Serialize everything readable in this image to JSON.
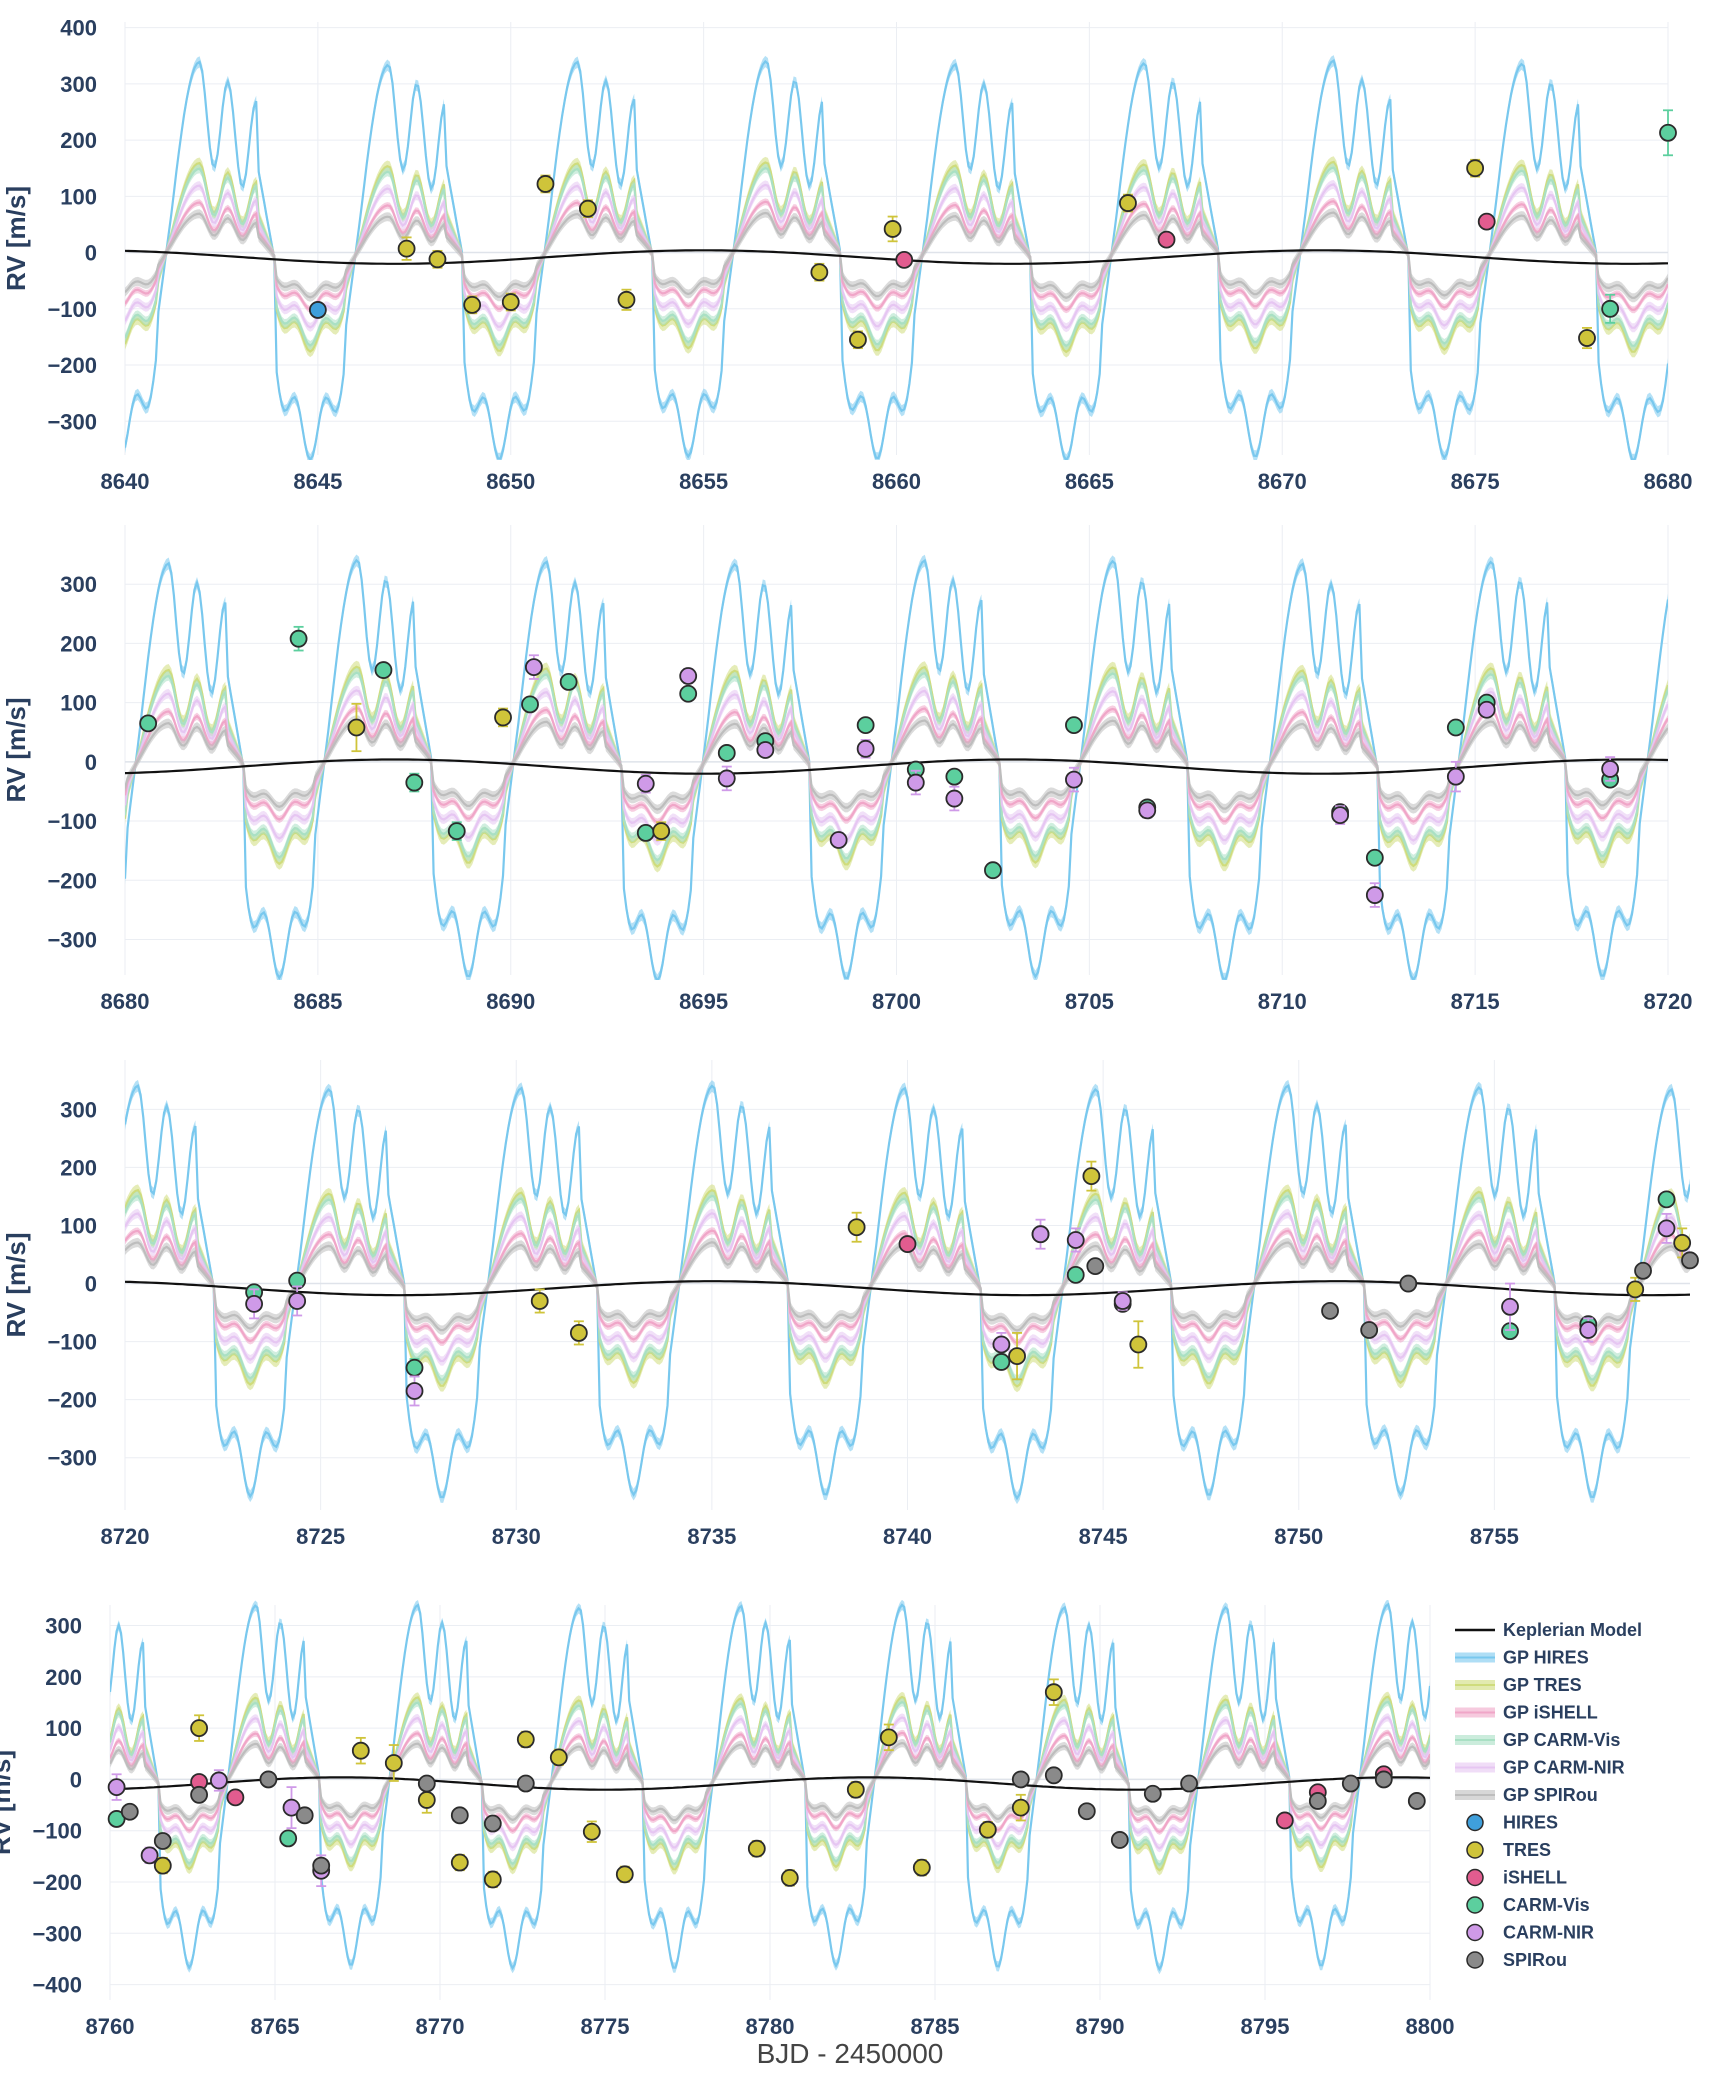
{
  "figure": {
    "x_axis_title": "BJD - 2450000"
  },
  "legend": {
    "position": "right of bottom panel",
    "entries": [
      {
        "name": "Keplerian Model",
        "kind": "line",
        "color": "#111111"
      },
      {
        "name": "GP HIRES",
        "kind": "band",
        "color": "#79c8ee"
      },
      {
        "name": "GP TRES",
        "kind": "band",
        "color": "#cfdc7c"
      },
      {
        "name": "GP iSHELL",
        "kind": "band",
        "color": "#f0a6c8"
      },
      {
        "name": "GP CARM-Vis",
        "kind": "band",
        "color": "#a9e0c4"
      },
      {
        "name": "GP CARM-NIR",
        "kind": "band",
        "color": "#e6c6f2"
      },
      {
        "name": "GP SPIRou",
        "kind": "band",
        "color": "#bdbdbd"
      },
      {
        "name": "HIRES",
        "kind": "marker",
        "color": "#3f9fdb"
      },
      {
        "name": "TRES",
        "kind": "marker",
        "color": "#cfc43a"
      },
      {
        "name": "iSHELL",
        "kind": "marker",
        "color": "#e25c8f"
      },
      {
        "name": "CARM-Vis",
        "kind": "marker",
        "color": "#5ccf9e"
      },
      {
        "name": "CARM-NIR",
        "kind": "marker",
        "color": "#cf9ae8"
      },
      {
        "name": "SPIRou",
        "kind": "marker",
        "color": "#8a8a8a"
      }
    ]
  },
  "chart_data": [
    {
      "type": "line",
      "ylabel": "RV [m/s]",
      "xlim": [
        8640,
        8680
      ],
      "ylim": [
        -360,
        410
      ],
      "xticks": [
        "8640",
        "8645",
        "8650",
        "8655",
        "8660",
        "8665",
        "8670",
        "8675",
        "8680"
      ],
      "yticks": [
        "400",
        "300",
        "200",
        "100",
        "0",
        "−100",
        "−200",
        "−300"
      ],
      "points": [
        {
          "inst": "HIRES",
          "x": 8645.0,
          "y": -102,
          "err": 6
        },
        {
          "inst": "TRES",
          "x": 8647.3,
          "y": 7,
          "err": 20
        },
        {
          "inst": "TRES",
          "x": 8648.1,
          "y": -12,
          "err": 15
        },
        {
          "inst": "TRES",
          "x": 8649.0,
          "y": -93,
          "err": 15
        },
        {
          "inst": "TRES",
          "x": 8650.0,
          "y": -88,
          "err": 15
        },
        {
          "inst": "TRES",
          "x": 8650.9,
          "y": 122,
          "err": 15
        },
        {
          "inst": "TRES",
          "x": 8652.0,
          "y": 78,
          "err": 15
        },
        {
          "inst": "TRES",
          "x": 8653.0,
          "y": -84,
          "err": 18
        },
        {
          "inst": "TRES",
          "x": 8658.0,
          "y": -35,
          "err": 15
        },
        {
          "inst": "TRES",
          "x": 8659.0,
          "y": -155,
          "err": 15
        },
        {
          "inst": "TRES",
          "x": 8659.9,
          "y": 42,
          "err": 22
        },
        {
          "inst": "iSHELL",
          "x": 8660.2,
          "y": -13,
          "err": 8
        },
        {
          "inst": "TRES",
          "x": 8666.0,
          "y": 88,
          "err": 15
        },
        {
          "inst": "iSHELL",
          "x": 8667.0,
          "y": 23,
          "err": 8
        },
        {
          "inst": "TRES",
          "x": 8675.0,
          "y": 150,
          "err": 15
        },
        {
          "inst": "iSHELL",
          "x": 8675.3,
          "y": 55,
          "err": 8
        },
        {
          "inst": "TRES",
          "x": 8677.9,
          "y": -152,
          "err": 18
        },
        {
          "inst": "CARM-Vis",
          "x": 8678.5,
          "y": -100,
          "err": 25
        },
        {
          "inst": "CARM-Vis",
          "x": 8680.0,
          "y": 213,
          "err": 40
        }
      ]
    },
    {
      "type": "line",
      "ylabel": "RV [m/s]",
      "xlim": [
        8680,
        8720
      ],
      "ylim": [
        -360,
        400
      ],
      "xticks": [
        "8680",
        "8685",
        "8690",
        "8695",
        "8700",
        "8705",
        "8710",
        "8715",
        "8720"
      ],
      "yticks": [
        "300",
        "200",
        "100",
        "0",
        "−100",
        "−200",
        "−300"
      ],
      "points": [
        {
          "inst": "CARM-Vis",
          "x": 8680.6,
          "y": 65,
          "err": 10
        },
        {
          "inst": "CARM-Vis",
          "x": 8684.5,
          "y": 208,
          "err": 20
        },
        {
          "inst": "TRES",
          "x": 8686.0,
          "y": 58,
          "err": 40
        },
        {
          "inst": "CARM-Vis",
          "x": 8686.7,
          "y": 155,
          "err": 10
        },
        {
          "inst": "CARM-Vis",
          "x": 8687.5,
          "y": -35,
          "err": 15
        },
        {
          "inst": "CARM-Vis",
          "x": 8688.6,
          "y": -117,
          "err": 15
        },
        {
          "inst": "TRES",
          "x": 8689.8,
          "y": 75,
          "err": 15
        },
        {
          "inst": "CARM-Vis",
          "x": 8690.5,
          "y": 97,
          "err": 10
        },
        {
          "inst": "CARM-NIR",
          "x": 8690.6,
          "y": 160,
          "err": 20
        },
        {
          "inst": "CARM-Vis",
          "x": 8691.5,
          "y": 135,
          "err": 10
        },
        {
          "inst": "CARM-NIR",
          "x": 8693.5,
          "y": -37,
          "err": 15
        },
        {
          "inst": "CARM-Vis",
          "x": 8693.5,
          "y": -120,
          "err": 12
        },
        {
          "inst": "TRES",
          "x": 8693.9,
          "y": -117,
          "err": 15
        },
        {
          "inst": "CARM-Vis",
          "x": 8694.6,
          "y": 115,
          "err": 10
        },
        {
          "inst": "CARM-NIR",
          "x": 8694.6,
          "y": 145,
          "err": 12
        },
        {
          "inst": "CARM-Vis",
          "x": 8695.6,
          "y": 15,
          "err": 10
        },
        {
          "inst": "CARM-NIR",
          "x": 8695.6,
          "y": -28,
          "err": 20
        },
        {
          "inst": "CARM-Vis",
          "x": 8696.6,
          "y": 35,
          "err": 10
        },
        {
          "inst": "CARM-NIR",
          "x": 8696.6,
          "y": 20,
          "err": 10
        },
        {
          "inst": "CARM-NIR",
          "x": 8698.5,
          "y": -132,
          "err": 12
        },
        {
          "inst": "CARM-Vis",
          "x": 8699.2,
          "y": 62,
          "err": 10
        },
        {
          "inst": "CARM-NIR",
          "x": 8699.2,
          "y": 22,
          "err": 15
        },
        {
          "inst": "CARM-Vis",
          "x": 8700.5,
          "y": -13,
          "err": 10
        },
        {
          "inst": "CARM-NIR",
          "x": 8700.5,
          "y": -35,
          "err": 20
        },
        {
          "inst": "CARM-Vis",
          "x": 8701.5,
          "y": -25,
          "err": 10
        },
        {
          "inst": "CARM-NIR",
          "x": 8701.5,
          "y": -62,
          "err": 20
        },
        {
          "inst": "CARM-Vis",
          "x": 8702.5,
          "y": -183,
          "err": 10
        },
        {
          "inst": "CARM-Vis",
          "x": 8704.6,
          "y": 62,
          "err": 10
        },
        {
          "inst": "CARM-NIR",
          "x": 8704.6,
          "y": -30,
          "err": 20
        },
        {
          "inst": "CARM-Vis",
          "x": 8706.5,
          "y": -77,
          "err": 10
        },
        {
          "inst": "CARM-NIR",
          "x": 8706.5,
          "y": -82,
          "err": 12
        },
        {
          "inst": "CARM-Vis",
          "x": 8711.5,
          "y": -85,
          "err": 10
        },
        {
          "inst": "CARM-NIR",
          "x": 8711.5,
          "y": -90,
          "err": 15
        },
        {
          "inst": "CARM-Vis",
          "x": 8712.4,
          "y": -162,
          "err": 10
        },
        {
          "inst": "CARM-NIR",
          "x": 8712.4,
          "y": -225,
          "err": 20
        },
        {
          "inst": "CARM-Vis",
          "x": 8714.5,
          "y": 58,
          "err": 10
        },
        {
          "inst": "CARM-NIR",
          "x": 8714.5,
          "y": -25,
          "err": 25
        },
        {
          "inst": "CARM-Vis",
          "x": 8715.3,
          "y": 100,
          "err": 10
        },
        {
          "inst": "CARM-NIR",
          "x": 8715.3,
          "y": 88,
          "err": 10
        },
        {
          "inst": "CARM-Vis",
          "x": 8718.5,
          "y": -30,
          "err": 10
        },
        {
          "inst": "CARM-NIR",
          "x": 8718.5,
          "y": -12,
          "err": 20
        }
      ]
    },
    {
      "type": "line",
      "ylabel": "RV [m/s]",
      "xlim": [
        8720,
        8760
      ],
      "ylim": [
        -390,
        385
      ],
      "xticks": [
        "8720",
        "8725",
        "8730",
        "8735",
        "8740",
        "8745",
        "8750",
        "8755"
      ],
      "yticks": [
        "300",
        "200",
        "100",
        "0",
        "−100",
        "−200",
        "−300"
      ],
      "points": [
        {
          "inst": "CARM-Vis",
          "x": 8723.3,
          "y": -15,
          "err": 10
        },
        {
          "inst": "CARM-NIR",
          "x": 8723.3,
          "y": -35,
          "err": 25
        },
        {
          "inst": "CARM-Vis",
          "x": 8724.4,
          "y": 5,
          "err": 10
        },
        {
          "inst": "CARM-NIR",
          "x": 8724.4,
          "y": -30,
          "err": 25
        },
        {
          "inst": "CARM-Vis",
          "x": 8727.4,
          "y": -145,
          "err": 15
        },
        {
          "inst": "CARM-NIR",
          "x": 8727.4,
          "y": -185,
          "err": 25
        },
        {
          "inst": "TRES",
          "x": 8730.6,
          "y": -30,
          "err": 20
        },
        {
          "inst": "TRES",
          "x": 8731.6,
          "y": -85,
          "err": 20
        },
        {
          "inst": "TRES",
          "x": 8738.7,
          "y": 97,
          "err": 25
        },
        {
          "inst": "iSHELL",
          "x": 8740.0,
          "y": 68,
          "err": 8
        },
        {
          "inst": "CARM-NIR",
          "x": 8742.4,
          "y": -105,
          "err": 20
        },
        {
          "inst": "CARM-Vis",
          "x": 8742.4,
          "y": -135,
          "err": 10
        },
        {
          "inst": "TRES",
          "x": 8742.8,
          "y": -125,
          "err": 40
        },
        {
          "inst": "CARM-Vis",
          "x": 8743.4,
          "y": 85,
          "err": 10
        },
        {
          "inst": "CARM-NIR",
          "x": 8743.4,
          "y": 85,
          "err": 25
        },
        {
          "inst": "TRES",
          "x": 8744.7,
          "y": 185,
          "err": 25
        },
        {
          "inst": "CARM-Vis",
          "x": 8744.3,
          "y": 15,
          "err": 10
        },
        {
          "inst": "CARM-NIR",
          "x": 8744.3,
          "y": 75,
          "err": 20
        },
        {
          "inst": "SPIRou",
          "x": 8744.8,
          "y": 30,
          "err": 8
        },
        {
          "inst": "SPIRou",
          "x": 8745.5,
          "y": -35,
          "err": 8
        },
        {
          "inst": "CARM-NIR",
          "x": 8745.5,
          "y": -30,
          "err": 15
        },
        {
          "inst": "TRES",
          "x": 8745.9,
          "y": -105,
          "err": 40
        },
        {
          "inst": "SPIRou",
          "x": 8750.8,
          "y": -47,
          "err": 8
        },
        {
          "inst": "SPIRou",
          "x": 8751.8,
          "y": -80,
          "err": 8
        },
        {
          "inst": "SPIRou",
          "x": 8752.8,
          "y": 0,
          "err": 8
        },
        {
          "inst": "CARM-Vis",
          "x": 8755.4,
          "y": -82,
          "err": 10
        },
        {
          "inst": "CARM-NIR",
          "x": 8755.4,
          "y": -40,
          "err": 40
        },
        {
          "inst": "CARM-Vis",
          "x": 8757.4,
          "y": -70,
          "err": 10
        },
        {
          "inst": "CARM-NIR",
          "x": 8757.4,
          "y": -80,
          "err": 20
        },
        {
          "inst": "TRES",
          "x": 8758.6,
          "y": -10,
          "err": 20
        },
        {
          "inst": "SPIRou",
          "x": 8758.8,
          "y": 22,
          "err": 8
        },
        {
          "inst": "CARM-Vis",
          "x": 8759.4,
          "y": 145,
          "err": 10
        },
        {
          "inst": "CARM-NIR",
          "x": 8759.4,
          "y": 95,
          "err": 25
        },
        {
          "inst": "TRES",
          "x": 8759.8,
          "y": 70,
          "err": 25
        },
        {
          "inst": "SPIRou",
          "x": 8760.0,
          "y": 40,
          "err": 8
        }
      ]
    },
    {
      "type": "line",
      "ylabel": "RV [m/s]",
      "xlim": [
        8760,
        8800
      ],
      "ylim": [
        -430,
        340
      ],
      "xticks": [
        "8760",
        "8765",
        "8770",
        "8775",
        "8780",
        "8785",
        "8790",
        "8795",
        "8800"
      ],
      "yticks": [
        "300",
        "200",
        "100",
        "0",
        "−100",
        "−200",
        "−300",
        "−400"
      ],
      "points": [
        {
          "inst": "CARM-Vis",
          "x": 8760.2,
          "y": -77,
          "err": 10
        },
        {
          "inst": "CARM-NIR",
          "x": 8760.2,
          "y": -15,
          "err": 25
        },
        {
          "inst": "SPIRou",
          "x": 8760.6,
          "y": -63,
          "err": 8
        },
        {
          "inst": "CARM-NIR",
          "x": 8761.2,
          "y": -148,
          "err": 15
        },
        {
          "inst": "TRES",
          "x": 8761.6,
          "y": -168,
          "err": 15
        },
        {
          "inst": "SPIRou",
          "x": 8761.6,
          "y": -120,
          "err": 8
        },
        {
          "inst": "TRES",
          "x": 8762.7,
          "y": 100,
          "err": 25
        },
        {
          "inst": "iSHELL",
          "x": 8762.7,
          "y": -5,
          "err": 8
        },
        {
          "inst": "SPIRou",
          "x": 8762.7,
          "y": -30,
          "err": 8
        },
        {
          "inst": "CARM-NIR",
          "x": 8763.3,
          "y": -2,
          "err": 20
        },
        {
          "inst": "iSHELL",
          "x": 8763.8,
          "y": -35,
          "err": 8
        },
        {
          "inst": "SPIRou",
          "x": 8764.8,
          "y": 0,
          "err": 8
        },
        {
          "inst": "CARM-Vis",
          "x": 8765.4,
          "y": -115,
          "err": 10
        },
        {
          "inst": "CARM-NIR",
          "x": 8765.5,
          "y": -55,
          "err": 40
        },
        {
          "inst": "SPIRou",
          "x": 8765.9,
          "y": -70,
          "err": 8
        },
        {
          "inst": "CARM-NIR",
          "x": 8766.4,
          "y": -178,
          "err": 30
        },
        {
          "inst": "SPIRou",
          "x": 8766.4,
          "y": -168,
          "err": 8
        },
        {
          "inst": "TRES",
          "x": 8767.6,
          "y": 56,
          "err": 25
        },
        {
          "inst": "TRES",
          "x": 8768.6,
          "y": 32,
          "err": 35
        },
        {
          "inst": "TRES",
          "x": 8769.6,
          "y": -40,
          "err": 25
        },
        {
          "inst": "SPIRou",
          "x": 8769.6,
          "y": -8,
          "err": 8
        },
        {
          "inst": "TRES",
          "x": 8770.6,
          "y": -162,
          "err": 15
        },
        {
          "inst": "SPIRou",
          "x": 8770.6,
          "y": -70,
          "err": 8
        },
        {
          "inst": "TRES",
          "x": 8771.6,
          "y": -195,
          "err": 15
        },
        {
          "inst": "SPIRou",
          "x": 8771.6,
          "y": -86,
          "err": 8
        },
        {
          "inst": "TRES",
          "x": 8772.6,
          "y": 78,
          "err": 15
        },
        {
          "inst": "SPIRou",
          "x": 8772.6,
          "y": -8,
          "err": 8
        },
        {
          "inst": "TRES",
          "x": 8773.6,
          "y": 43,
          "err": 15
        },
        {
          "inst": "TRES",
          "x": 8774.6,
          "y": -102,
          "err": 20
        },
        {
          "inst": "TRES",
          "x": 8775.6,
          "y": -185,
          "err": 15
        },
        {
          "inst": "TRES",
          "x": 8779.6,
          "y": -135,
          "err": 15
        },
        {
          "inst": "TRES",
          "x": 8780.6,
          "y": -192,
          "err": 15
        },
        {
          "inst": "TRES",
          "x": 8782.6,
          "y": -20,
          "err": 15
        },
        {
          "inst": "TRES",
          "x": 8783.6,
          "y": 82,
          "err": 25
        },
        {
          "inst": "TRES",
          "x": 8784.6,
          "y": -172,
          "err": 15
        },
        {
          "inst": "TRES",
          "x": 8786.6,
          "y": -98,
          "err": 15
        },
        {
          "inst": "TRES",
          "x": 8787.6,
          "y": -55,
          "err": 25
        },
        {
          "inst": "SPIRou",
          "x": 8787.6,
          "y": 0,
          "err": 8
        },
        {
          "inst": "TRES",
          "x": 8788.6,
          "y": 170,
          "err": 25
        },
        {
          "inst": "SPIRou",
          "x": 8788.6,
          "y": 8,
          "err": 8
        },
        {
          "inst": "SPIRou",
          "x": 8789.6,
          "y": -62,
          "err": 8
        },
        {
          "inst": "SPIRou",
          "x": 8790.6,
          "y": -118,
          "err": 8
        },
        {
          "inst": "SPIRou",
          "x": 8791.6,
          "y": -28,
          "err": 8
        },
        {
          "inst": "SPIRou",
          "x": 8792.7,
          "y": -8,
          "err": 8
        },
        {
          "inst": "iSHELL",
          "x": 8795.6,
          "y": -80,
          "err": 8
        },
        {
          "inst": "iSHELL",
          "x": 8796.6,
          "y": -25,
          "err": 8
        },
        {
          "inst": "SPIRou",
          "x": 8796.6,
          "y": -42,
          "err": 8
        },
        {
          "inst": "SPIRou",
          "x": 8797.6,
          "y": -8,
          "err": 8
        },
        {
          "inst": "iSHELL",
          "x": 8798.6,
          "y": 10,
          "err": 8
        },
        {
          "inst": "SPIRou",
          "x": 8798.6,
          "y": 0,
          "err": 8
        },
        {
          "inst": "SPIRou",
          "x": 8799.6,
          "y": -42,
          "err": 8
        }
      ]
    }
  ]
}
